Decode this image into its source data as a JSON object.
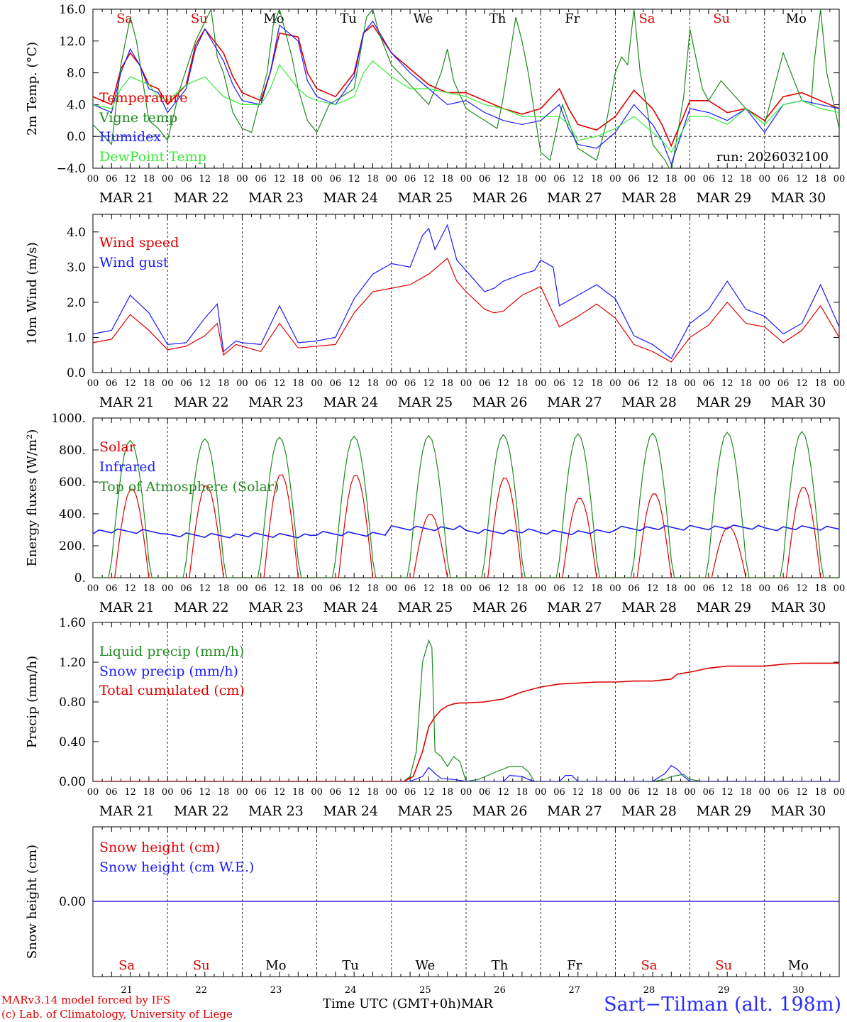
{
  "run_label": "run: 2026032100",
  "days": {
    "names": [
      "Sa",
      "Su",
      "Mo",
      "Tu",
      "We",
      "Th",
      "Fr",
      "Sa",
      "Su",
      "Mo"
    ],
    "name_colors": [
      "#e00000",
      "#e00000",
      "#000000",
      "#000000",
      "#000000",
      "#000000",
      "#000000",
      "#e00000",
      "#e00000",
      "#000000"
    ],
    "dates": [
      "MAR 21",
      "MAR 22",
      "MAR 23",
      "MAR 24",
      "MAR 25",
      "MAR 26",
      "MAR 27",
      "MAR 28",
      "MAR 29",
      "MAR 30"
    ],
    "numbers": [
      "21",
      "22",
      "23",
      "24",
      "25",
      "26",
      "27",
      "28",
      "29",
      "30"
    ],
    "hour_ticks": [
      "00",
      "06",
      "12",
      "18"
    ]
  },
  "footer": {
    "credit_line1": "MARv3.14 model forced by IFS",
    "credit_line2": "(c) Lab. of Climatology, University of Liege",
    "time_label": "Time UTC (GMT+0h)",
    "month_label": "MAR",
    "station": "Sart−Tilman (alt. 198m)"
  },
  "chart_data": [
    {
      "type": "line",
      "ylabel": "2m Temp. (°C)",
      "ylim": [
        -4,
        16
      ],
      "yticks": [
        "−4.0",
        "0.0",
        "4.0",
        "8.0",
        "12.0",
        "16.0"
      ],
      "ytick_values": [
        -4,
        0,
        4,
        8,
        12,
        16
      ],
      "x_unit": "hours since MAR 21 00 UTC",
      "xlim": [
        0,
        240
      ],
      "zero_line": true,
      "series": [
        {
          "name": "Temperature",
          "color": "#e00000",
          "x": [
            0,
            6,
            9,
            12,
            15,
            18,
            21,
            24,
            30,
            33,
            36,
            42,
            45,
            48,
            54,
            57,
            60,
            66,
            69,
            72,
            78,
            84,
            87,
            90,
            96,
            102,
            108,
            114,
            120,
            126,
            132,
            138,
            144,
            150,
            153,
            156,
            162,
            168,
            174,
            180,
            183,
            186,
            192,
            198,
            204,
            210,
            216,
            222,
            228,
            234,
            240
          ],
          "y": [
            5.0,
            4.0,
            8.5,
            10.5,
            9.0,
            6.5,
            6.0,
            4.0,
            6.5,
            11.5,
            13.5,
            10.5,
            7.5,
            5.5,
            4.5,
            8.0,
            13.0,
            12.5,
            8.0,
            6.0,
            5.0,
            8.0,
            13.0,
            14.0,
            10.5,
            8.5,
            6.5,
            5.5,
            5.5,
            4.5,
            3.5,
            2.8,
            3.5,
            6.0,
            3.5,
            1.5,
            0.8,
            2.5,
            5.8,
            3.5,
            1.5,
            -1.2,
            4.5,
            4.5,
            3.0,
            3.5,
            2.0,
            5.0,
            5.5,
            4.5,
            3.5
          ]
        },
        {
          "name": "Vigne temp",
          "color": "#1f8a1f",
          "x": [
            0,
            6,
            9,
            12,
            14,
            18,
            21,
            24,
            28,
            33,
            38,
            40,
            42,
            45,
            48,
            51,
            54,
            56,
            58,
            60,
            62,
            64,
            66,
            69,
            72,
            76,
            84,
            88,
            90,
            92,
            96,
            102,
            108,
            112,
            114,
            116,
            120,
            124,
            126,
            130,
            132,
            136,
            138,
            140,
            144,
            147,
            150,
            151,
            156,
            162,
            165,
            168,
            170,
            172,
            174,
            176,
            178,
            180,
            184,
            186,
            190,
            192,
            196,
            198,
            202,
            210,
            216,
            222,
            228,
            231,
            232,
            234,
            236,
            240
          ],
          "y": [
            1.5,
            -1.0,
            9.0,
            15.0,
            12.0,
            2.0,
            1.0,
            -0.5,
            6.0,
            12.0,
            16.0,
            10.0,
            8.0,
            3.0,
            1.0,
            0.5,
            5.0,
            8.0,
            14.0,
            16.0,
            13.0,
            10.0,
            6.0,
            2.0,
            0.5,
            4.0,
            6.0,
            15.0,
            16.0,
            13.0,
            9.0,
            6.5,
            4.0,
            8.0,
            11.0,
            7.0,
            3.5,
            2.5,
            2.0,
            1.0,
            5.0,
            15.0,
            12.0,
            8.0,
            -2.0,
            -3.0,
            2.5,
            4.0,
            -1.5,
            -3.0,
            1.5,
            8.0,
            10.0,
            9.0,
            16.0,
            8.0,
            4.0,
            -1.0,
            -3.0,
            -4.5,
            5.0,
            13.5,
            6.0,
            4.5,
            7.0,
            3.5,
            1.5,
            10.5,
            4.5,
            4.0,
            9.5,
            16.0,
            8.0,
            1.0
          ]
        },
        {
          "name": "Humidex",
          "color": "#1a1aff",
          "x": [
            0,
            6,
            9,
            12,
            15,
            18,
            21,
            24,
            30,
            33,
            36,
            42,
            45,
            48,
            54,
            57,
            60,
            66,
            69,
            72,
            78,
            84,
            87,
            90,
            96,
            102,
            108,
            114,
            120,
            126,
            132,
            138,
            144,
            150,
            153,
            156,
            162,
            168,
            174,
            180,
            183,
            186,
            192,
            198,
            204,
            210,
            216,
            222,
            228,
            234,
            240
          ],
          "y": [
            4.0,
            3.0,
            8.0,
            11.0,
            9.0,
            6.0,
            5.5,
            3.0,
            6.0,
            11.0,
            13.5,
            9.5,
            6.5,
            4.5,
            4.0,
            8.0,
            14.0,
            12.0,
            7.0,
            5.0,
            4.0,
            7.5,
            13.0,
            14.5,
            10.5,
            8.0,
            6.0,
            4.0,
            4.5,
            3.0,
            2.0,
            1.5,
            2.0,
            4.0,
            1.0,
            -1.0,
            -1.5,
            0.5,
            4.0,
            1.5,
            -0.5,
            -3.5,
            3.5,
            3.0,
            2.0,
            3.5,
            0.5,
            4.0,
            4.5,
            4.0,
            3.5
          ]
        },
        {
          "name": "DewPoint Temp",
          "color": "#33ee33",
          "x": [
            0,
            6,
            9,
            12,
            15,
            18,
            21,
            24,
            30,
            33,
            36,
            42,
            45,
            48,
            54,
            57,
            60,
            66,
            69,
            72,
            78,
            84,
            87,
            90,
            96,
            102,
            108,
            114,
            120,
            126,
            132,
            138,
            144,
            150,
            153,
            156,
            162,
            168,
            174,
            180,
            183,
            186,
            192,
            198,
            204,
            210,
            216,
            222,
            228,
            234,
            240
          ],
          "y": [
            4.0,
            3.5,
            6.0,
            7.5,
            7.0,
            6.5,
            5.0,
            4.5,
            6.5,
            7.0,
            7.5,
            5.0,
            4.5,
            4.0,
            4.0,
            6.0,
            9.0,
            6.0,
            5.0,
            4.5,
            4.0,
            5.0,
            8.0,
            9.5,
            7.5,
            6.0,
            6.0,
            5.5,
            5.0,
            4.0,
            3.5,
            2.5,
            2.5,
            2.5,
            1.5,
            -0.5,
            0.0,
            1.0,
            2.5,
            0.5,
            -0.5,
            -2.0,
            2.5,
            2.5,
            1.5,
            3.5,
            1.5,
            4.0,
            4.5,
            3.5,
            3.0
          ]
        }
      ]
    },
    {
      "type": "line",
      "ylabel": "10m Wind (m/s)",
      "ylim": [
        0,
        4.5
      ],
      "yticks": [
        "0.0",
        "1.0",
        "2.0",
        "3.0",
        "4.0"
      ],
      "ytick_values": [
        0,
        1,
        2,
        3,
        4
      ],
      "x_unit": "hours since MAR 21 00 UTC",
      "xlim": [
        0,
        240
      ],
      "series": [
        {
          "name": "Wind speed",
          "color": "#e00000",
          "x": [
            0,
            6,
            12,
            18,
            24,
            30,
            36,
            40,
            42,
            46,
            48,
            54,
            60,
            66,
            72,
            78,
            84,
            90,
            96,
            102,
            108,
            114,
            117,
            120,
            126,
            129,
            132,
            138,
            144,
            150,
            156,
            162,
            168,
            174,
            180,
            186,
            192,
            198,
            204,
            210,
            216,
            222,
            228,
            234,
            240
          ],
          "y": [
            0.85,
            0.95,
            1.65,
            1.2,
            0.65,
            0.75,
            1.05,
            1.4,
            0.5,
            0.8,
            0.75,
            0.6,
            1.4,
            0.7,
            0.75,
            0.8,
            1.7,
            2.3,
            2.4,
            2.5,
            2.8,
            3.25,
            2.6,
            2.3,
            1.8,
            1.7,
            1.75,
            2.2,
            2.45,
            1.3,
            1.6,
            1.95,
            1.55,
            0.8,
            0.6,
            0.3,
            1.0,
            1.35,
            2.0,
            1.4,
            1.3,
            0.85,
            1.2,
            1.9,
            1.0
          ]
        },
        {
          "name": "Wind gust",
          "color": "#1a1aff",
          "x": [
            0,
            6,
            12,
            18,
            24,
            30,
            36,
            40,
            42,
            46,
            48,
            54,
            60,
            66,
            72,
            78,
            84,
            90,
            96,
            102,
            106,
            108,
            110,
            114,
            117,
            120,
            126,
            129,
            132,
            138,
            142,
            144,
            148,
            150,
            156,
            162,
            168,
            174,
            180,
            186,
            192,
            198,
            204,
            210,
            216,
            222,
            228,
            234,
            240
          ],
          "y": [
            1.1,
            1.2,
            2.2,
            1.7,
            0.8,
            0.85,
            1.55,
            1.95,
            0.6,
            0.9,
            0.85,
            0.8,
            1.9,
            0.85,
            0.9,
            1.0,
            2.1,
            2.8,
            3.1,
            3.0,
            3.9,
            4.1,
            3.5,
            4.2,
            3.2,
            2.9,
            2.3,
            2.4,
            2.6,
            2.8,
            2.9,
            3.2,
            3.0,
            1.9,
            2.2,
            2.5,
            2.1,
            1.05,
            0.8,
            0.4,
            1.4,
            1.8,
            2.6,
            1.8,
            1.6,
            1.1,
            1.4,
            2.5,
            1.3
          ]
        }
      ]
    },
    {
      "type": "line",
      "ylabel": "Energy fluxes (W/m²)",
      "ylim": [
        0,
        1000
      ],
      "yticks": [
        "0.",
        "200.",
        "400.",
        "600.",
        "800.",
        "1000."
      ],
      "ytick_values": [
        0,
        200,
        400,
        600,
        800,
        1000
      ],
      "x_unit": "hours since MAR 21 00 UTC",
      "xlim": [
        0,
        240
      ],
      "series": [
        {
          "name": "Solar",
          "color": "#e00000",
          "daily_peaks": [
            560,
            580,
            650,
            645,
            400,
            630,
            500,
            530,
            320,
            570
          ]
        },
        {
          "name": "Infrared",
          "color": "#1a1aff",
          "daily_mean": [
            290,
            265,
            265,
            275,
            310,
            290,
            285,
            310,
            315,
            310
          ]
        },
        {
          "name": "Top of Atmosphere (Solar)",
          "color": "#1f8a1f",
          "daily_peaks": [
            860,
            870,
            880,
            885,
            890,
            895,
            900,
            905,
            910,
            915
          ]
        }
      ]
    },
    {
      "type": "line",
      "ylabel": "Precip (mm/h)",
      "ylim": [
        0,
        1.6
      ],
      "yticks": [
        "0.00",
        "0.40",
        "0.80",
        "1.20",
        "1.60"
      ],
      "ytick_values": [
        0,
        0.4,
        0.8,
        1.2,
        1.6
      ],
      "x_unit": "hours since MAR 21 00 UTC",
      "xlim": [
        0,
        240
      ],
      "series": [
        {
          "name": "Liquid precip (mm/h)",
          "color": "#1f8a1f",
          "x": [
            0,
            100,
            102,
            104,
            106,
            108,
            109,
            110,
            112,
            114,
            116,
            118,
            120,
            124,
            130,
            134,
            138,
            140,
            142,
            146,
            150,
            180,
            184,
            186,
            190,
            192,
            196,
            200,
            240
          ],
          "y": [
            0,
            0,
            0.05,
            0.3,
            1.2,
            1.42,
            1.35,
            0.3,
            0.25,
            0.15,
            0.25,
            0.2,
            0,
            0.02,
            0.1,
            0.15,
            0.15,
            0.1,
            0,
            0,
            0,
            0,
            0.02,
            0.05,
            0.07,
            0.02,
            0,
            0,
            0
          ]
        },
        {
          "name": "Snow precip (mm/h)",
          "color": "#1a1aff",
          "x": [
            0,
            102,
            106,
            108,
            110,
            112,
            116,
            120,
            132,
            134,
            138,
            140,
            142,
            150,
            152,
            154,
            156,
            180,
            184,
            186,
            188,
            190,
            192,
            240
          ],
          "y": [
            0,
            0,
            0.05,
            0.14,
            0.08,
            0.03,
            0.02,
            0,
            0,
            0.06,
            0.05,
            0.02,
            0,
            0,
            0.06,
            0.06,
            0,
            0,
            0.08,
            0.16,
            0.12,
            0.05,
            0,
            0
          ]
        },
        {
          "name": "Total cumulated (cm)",
          "color": "#e00000",
          "x": [
            0,
            100,
            103,
            106,
            108,
            110,
            112,
            114,
            116,
            118,
            120,
            126,
            132,
            138,
            144,
            150,
            156,
            162,
            168,
            174,
            180,
            186,
            188,
            192,
            198,
            204,
            210,
            216,
            222,
            228,
            234,
            240
          ],
          "y": [
            0,
            0,
            0.05,
            0.3,
            0.55,
            0.65,
            0.72,
            0.76,
            0.78,
            0.79,
            0.79,
            0.8,
            0.83,
            0.9,
            0.95,
            0.98,
            0.99,
            1.0,
            1.0,
            1.01,
            1.01,
            1.03,
            1.08,
            1.1,
            1.14,
            1.16,
            1.16,
            1.16,
            1.18,
            1.19,
            1.19,
            1.19
          ]
        }
      ]
    },
    {
      "type": "line",
      "ylabel": "Snow height (cm)",
      "yticks": [
        "0.00"
      ],
      "ytick_values": [
        0
      ],
      "x_unit": "hours since MAR 21 00 UTC",
      "xlim": [
        0,
        240
      ],
      "series": [
        {
          "name": "Snow height (cm)",
          "color": "#e00000",
          "x": [
            0,
            240
          ],
          "y": [
            0,
            0
          ]
        },
        {
          "name": "Snow height (cm W.E.)",
          "color": "#1a1aff",
          "x": [
            0,
            240
          ],
          "y": [
            0,
            0
          ]
        }
      ]
    }
  ]
}
